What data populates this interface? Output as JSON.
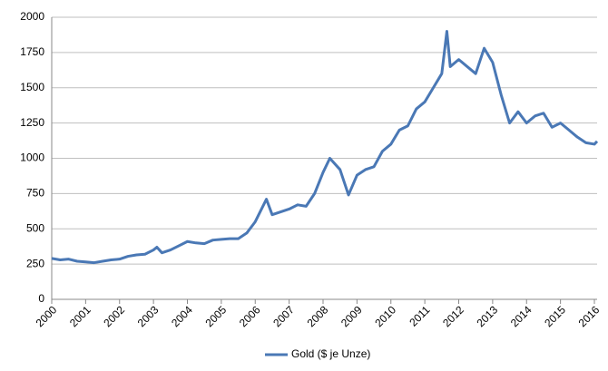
{
  "chart_data": {
    "type": "line",
    "x": [
      2000,
      2000.25,
      2000.5,
      2000.75,
      2001,
      2001.25,
      2001.5,
      2001.75,
      2002,
      2002.25,
      2002.5,
      2002.75,
      2003,
      2003.1,
      2003.25,
      2003.5,
      2003.75,
      2004,
      2004.25,
      2004.5,
      2004.75,
      2005,
      2005.25,
      2005.5,
      2005.75,
      2006,
      2006.33,
      2006.5,
      2006.75,
      2007,
      2007.25,
      2007.5,
      2007.75,
      2008,
      2008.2,
      2008.5,
      2008.75,
      2009,
      2009.25,
      2009.5,
      2009.75,
      2010,
      2010.25,
      2010.5,
      2010.75,
      2011,
      2011.25,
      2011.5,
      2011.65,
      2011.75,
      2012,
      2012.25,
      2012.5,
      2012.75,
      2013,
      2013.25,
      2013.5,
      2013.75,
      2014,
      2014.25,
      2014.5,
      2014.75,
      2015,
      2015.25,
      2015.5,
      2015.75,
      2016,
      2016.08
    ],
    "series": [
      {
        "name": "Gold ($ je Unze)",
        "color": "#4a78b5",
        "values": [
          290,
          280,
          285,
          270,
          265,
          260,
          270,
          280,
          285,
          305,
          315,
          320,
          350,
          370,
          330,
          350,
          380,
          410,
          400,
          395,
          420,
          425,
          430,
          430,
          470,
          550,
          710,
          600,
          620,
          640,
          670,
          660,
          750,
          900,
          1000,
          920,
          740,
          880,
          920,
          940,
          1050,
          1100,
          1200,
          1230,
          1350,
          1400,
          1500,
          1600,
          1900,
          1650,
          1700,
          1650,
          1600,
          1780,
          1680,
          1450,
          1250,
          1330,
          1250,
          1300,
          1320,
          1220,
          1250,
          1200,
          1150,
          1110,
          1100,
          1120
        ]
      }
    ],
    "xlim": [
      2000,
      2016.08
    ],
    "xticks": [
      2000,
      2001,
      2002,
      2003,
      2004,
      2005,
      2006,
      2007,
      2008,
      2009,
      2010,
      2011,
      2012,
      2013,
      2014,
      2015,
      2016
    ],
    "ylim": [
      0,
      2000
    ],
    "yticks": [
      0,
      250,
      500,
      750,
      1000,
      1250,
      1500,
      1750,
      2000
    ],
    "grid": true,
    "legend": "bottom"
  }
}
